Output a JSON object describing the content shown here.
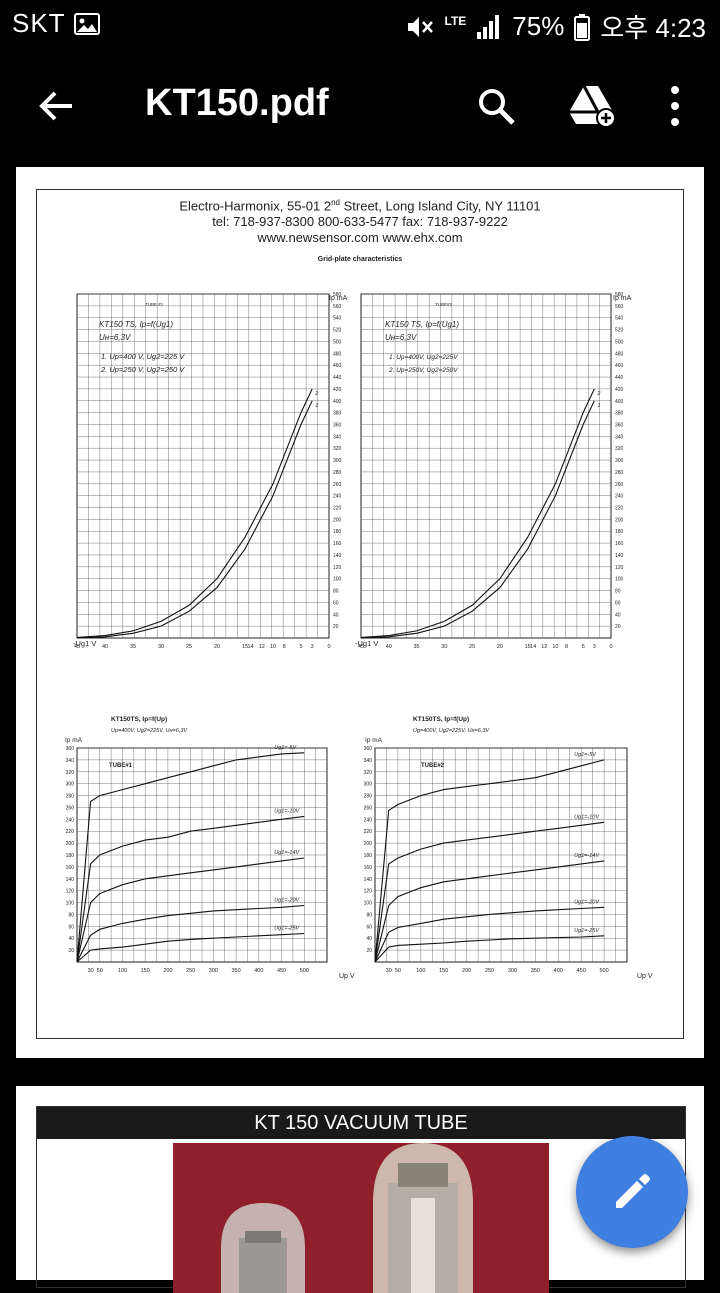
{
  "status": {
    "carrier": "SKT",
    "network": "LTE",
    "battery": "75%",
    "time": "오후 4:23"
  },
  "appbar": {
    "title": "KT150.pdf"
  },
  "page1": {
    "header_line1_pre": "Electro-Harmonix, 55-01 2",
    "header_line1_sup": "nd",
    "header_line1_post": " Street, Long Island City, NY  11101",
    "header_line2": "tel: 718-937-8300     800-633-5477     fax: 718-937-9222",
    "header_line3": "www.newsensor.com www.ehx.com",
    "section_title": "Grid-plate characteristics",
    "top_left": {
      "tube_label": "TUBE #1",
      "formula": "KT150 TS, Ip=f(Ug1)",
      "heater": "Uн=6,3V",
      "cond1": "1.  Up=400 V, Ug2=225 V",
      "cond2": "2.  Up=250 V, Ug2=250 V",
      "yunit": "Ip mA",
      "xlabel": "-Ug1 V"
    },
    "top_right": {
      "tube_label": "TUBE#2",
      "formula": "KT150 TS, Ip=f(Ug1)",
      "heater": "Uн=6,3V",
      "cond1": "1. Up=400V, Ug2=225V",
      "cond2": "2. Up=250V, Ug2=250V",
      "yunit": "Ip mA",
      "xlabel": "-Ug1 V"
    },
    "bottom_left": {
      "formula": "KT150TS, Ip=f(Up)",
      "cond": "Up=400V, Ug2=225V, Uн=6,3V",
      "tube_label": "TUBE#1",
      "yunit": "Ip mA",
      "xlabel": "Up V"
    },
    "bottom_right": {
      "formula": "KT150TS, Ip=f(Up)",
      "cond": "Ug=400V, Ug2=225V, Uн=6,3V",
      "tube_label": "TUBE#2",
      "yunit": "Ip mA",
      "xlabel": "Up V"
    }
  },
  "chart_data": [
    {
      "type": "line",
      "title": "KT150 TS, Ip=f(Ug1) TUBE #1",
      "xlabel": "-Ug1 V",
      "ylabel": "Ip mA",
      "xlim": [
        45,
        0
      ],
      "ylim": [
        0,
        580
      ],
      "x_ticks": [
        "45",
        "40",
        "35",
        "30",
        "25",
        "20",
        "15",
        "14",
        "12",
        "10",
        "8",
        "5",
        "3",
        "0"
      ],
      "series": [
        {
          "name": "1",
          "x": [
            45,
            40,
            35,
            30,
            25,
            20,
            15,
            10,
            5,
            3
          ],
          "values": [
            0,
            2,
            8,
            20,
            45,
            85,
            150,
            240,
            360,
            400
          ]
        },
        {
          "name": "2",
          "x": [
            45,
            40,
            35,
            30,
            25,
            20,
            15,
            10,
            5,
            3
          ],
          "values": [
            1,
            4,
            12,
            28,
            55,
            100,
            170,
            260,
            380,
            420
          ]
        }
      ]
    },
    {
      "type": "line",
      "title": "KT150 TS, Ip=f(Ug1) TUBE#2",
      "xlabel": "-Ug1 V",
      "ylabel": "Ip mA",
      "xlim": [
        45,
        0
      ],
      "ylim": [
        0,
        580
      ],
      "x_ticks": [
        "45",
        "40",
        "35",
        "30",
        "25",
        "20",
        "15",
        "14",
        "12",
        "10",
        "8",
        "5",
        "3",
        "0"
      ],
      "series": [
        {
          "name": "1",
          "x": [
            45,
            40,
            35,
            30,
            25,
            20,
            15,
            10,
            5,
            3
          ],
          "values": [
            0,
            2,
            8,
            20,
            45,
            85,
            150,
            240,
            360,
            400
          ]
        },
        {
          "name": "2",
          "x": [
            45,
            40,
            35,
            30,
            25,
            20,
            15,
            10,
            5,
            3
          ],
          "values": [
            1,
            4,
            12,
            28,
            55,
            100,
            170,
            260,
            380,
            420
          ]
        }
      ]
    },
    {
      "type": "line",
      "title": "KT150TS, Ip=f(Up) TUBE#1",
      "xlabel": "Up V",
      "ylabel": "Ip mA",
      "xlim": [
        0,
        550
      ],
      "ylim": [
        0,
        360
      ],
      "x_ticks": [
        "30",
        "50",
        "100",
        "150",
        "200",
        "250",
        "300",
        "350",
        "400",
        "450",
        "500"
      ],
      "series": [
        {
          "name": "Ug1=-5V",
          "x": [
            0,
            30,
            50,
            100,
            150,
            200,
            250,
            300,
            350,
            400,
            450,
            500
          ],
          "values": [
            0,
            270,
            280,
            290,
            300,
            310,
            320,
            330,
            340,
            345,
            350,
            352
          ]
        },
        {
          "name": "Ug1=-10V",
          "x": [
            0,
            30,
            50,
            100,
            150,
            200,
            250,
            300,
            350,
            400,
            450,
            500
          ],
          "values": [
            0,
            165,
            180,
            195,
            205,
            210,
            220,
            225,
            230,
            235,
            240,
            245
          ]
        },
        {
          "name": "Ug1=-14V",
          "x": [
            0,
            30,
            50,
            100,
            150,
            200,
            250,
            300,
            350,
            400,
            450,
            500
          ],
          "values": [
            0,
            100,
            115,
            130,
            140,
            145,
            150,
            155,
            160,
            165,
            170,
            175
          ]
        },
        {
          "name": "Ug1=-20V",
          "x": [
            0,
            30,
            50,
            100,
            150,
            200,
            250,
            300,
            350,
            400,
            450,
            500
          ],
          "values": [
            0,
            45,
            55,
            65,
            72,
            78,
            82,
            86,
            88,
            90,
            92,
            95
          ]
        },
        {
          "name": "Ug1=-25V",
          "x": [
            0,
            30,
            50,
            100,
            150,
            200,
            250,
            300,
            350,
            400,
            450,
            500
          ],
          "values": [
            0,
            20,
            22,
            25,
            30,
            35,
            38,
            40,
            42,
            44,
            46,
            48
          ]
        }
      ]
    },
    {
      "type": "line",
      "title": "KT150TS, Ip=f(Up) TUBE#2",
      "xlabel": "Up V",
      "ylabel": "Ip mA",
      "xlim": [
        0,
        550
      ],
      "ylim": [
        0,
        360
      ],
      "x_ticks": [
        "30",
        "50",
        "100",
        "150",
        "200",
        "250",
        "300",
        "350",
        "400",
        "450",
        "500"
      ],
      "series": [
        {
          "name": "Ug1=-5V",
          "x": [
            0,
            30,
            50,
            100,
            150,
            200,
            250,
            300,
            350,
            400,
            450,
            500
          ],
          "values": [
            0,
            255,
            265,
            280,
            290,
            295,
            300,
            305,
            310,
            320,
            330,
            340
          ]
        },
        {
          "name": "Ug1=-10V",
          "x": [
            0,
            30,
            50,
            100,
            150,
            200,
            250,
            300,
            350,
            400,
            450,
            500
          ],
          "values": [
            0,
            165,
            175,
            190,
            200,
            205,
            210,
            215,
            220,
            225,
            230,
            235
          ]
        },
        {
          "name": "Ug1=-14V",
          "x": [
            0,
            30,
            50,
            100,
            150,
            200,
            250,
            300,
            350,
            400,
            450,
            500
          ],
          "values": [
            0,
            95,
            110,
            125,
            135,
            140,
            145,
            150,
            155,
            160,
            165,
            170
          ]
        },
        {
          "name": "Ug1=-20V",
          "x": [
            0,
            30,
            50,
            100,
            150,
            200,
            250,
            300,
            350,
            400,
            450,
            500
          ],
          "values": [
            0,
            50,
            58,
            65,
            72,
            76,
            80,
            83,
            86,
            88,
            90,
            92
          ]
        },
        {
          "name": "Ug1=-25V",
          "x": [
            0,
            30,
            50,
            100,
            150,
            200,
            250,
            300,
            350,
            400,
            450,
            500
          ],
          "values": [
            0,
            25,
            28,
            30,
            32,
            35,
            37,
            39,
            40,
            41,
            42,
            44
          ]
        }
      ]
    }
  ],
  "page2": {
    "title": "KT 150  VACUUM TUBE"
  },
  "colors": {
    "fab": "#3f7fe0",
    "background": "#000000",
    "page": "#ffffff",
    "photo_bg": "#8e1f2b"
  },
  "icons": [
    "image-icon",
    "mute-icon",
    "signal-icon",
    "battery-icon",
    "back-arrow-icon",
    "search-icon",
    "drive-add-icon",
    "more-vert-icon",
    "pencil-icon"
  ]
}
